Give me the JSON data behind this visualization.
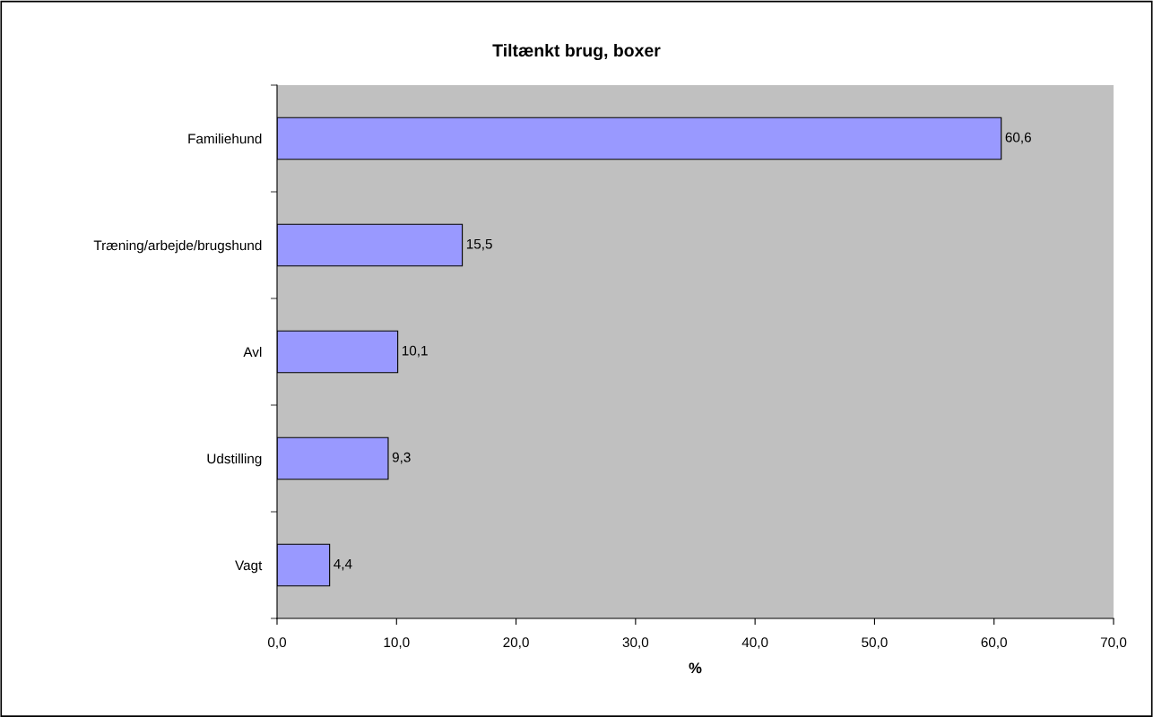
{
  "chart_data": {
    "type": "bar",
    "orientation": "horizontal",
    "title": "Tiltænkt brug, boxer",
    "xlabel": "%",
    "categories": [
      "Familiehund",
      "Træning/arbejde/brugshund",
      "Avl",
      "Udstilling",
      "Vagt"
    ],
    "values": [
      60.6,
      15.5,
      10.1,
      9.3,
      4.4
    ],
    "value_labels": [
      "60,6",
      "15,5",
      "10,1",
      "9,3",
      "4,4"
    ],
    "color": "#9999ff",
    "xlim": [
      0,
      70
    ],
    "xticks": [
      {
        "value": 0,
        "label": "0,0"
      },
      {
        "value": 10,
        "label": "10,0"
      },
      {
        "value": 20,
        "label": "20,0"
      },
      {
        "value": 30,
        "label": "30,0"
      },
      {
        "value": 40,
        "label": "40,0"
      },
      {
        "value": 50,
        "label": "50,0"
      },
      {
        "value": 60,
        "label": "60,0"
      },
      {
        "value": 70,
        "label": "70,0"
      }
    ],
    "grid": false,
    "legend": false
  }
}
